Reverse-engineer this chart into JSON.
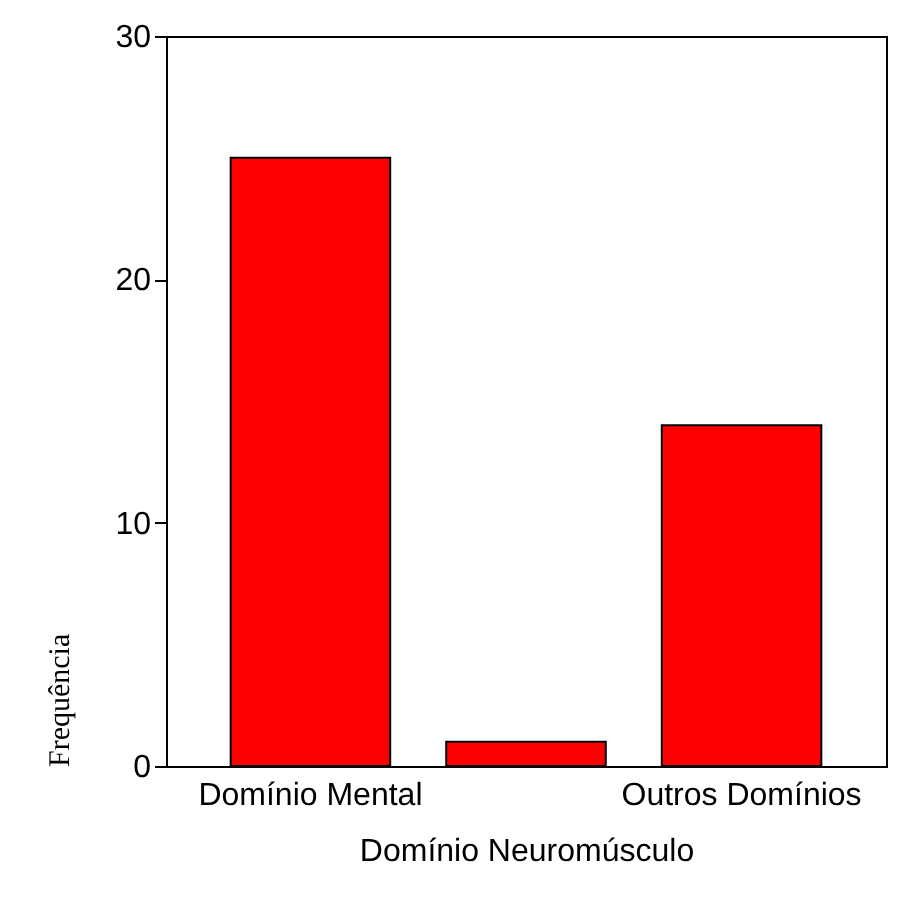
{
  "chart_data": {
    "type": "bar",
    "xlabel": "Domínio Neuromúsculo",
    "ylabel": "Frequência",
    "categories": [
      "Domínio Mental",
      null,
      "Outros Domínios"
    ],
    "values": [
      25,
      1,
      14
    ],
    "color": "#ff0000",
    "ylim": [
      0,
      30
    ],
    "yticks": [
      0,
      10,
      20,
      30
    ],
    "grid": false
  }
}
